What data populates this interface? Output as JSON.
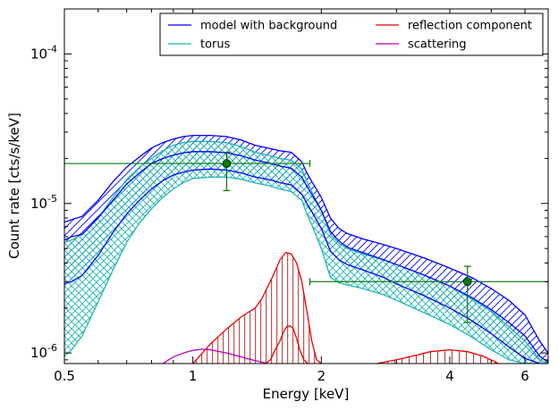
{
  "chart_data": {
    "type": "line",
    "title": "",
    "xlabel": "Energy [keV]",
    "ylabel": "Count rate [cts/s/keV]",
    "xscale": "log",
    "yscale": "log",
    "xlim": [
      0.5,
      6.8
    ],
    "ylim": [
      8.5e-07,
      0.0002
    ],
    "grid": false,
    "legend_position": "top-right",
    "legend_columns": 2,
    "x_ticks": [
      {
        "value": 0.5,
        "label": "0.5"
      },
      {
        "value": 1,
        "label": "1"
      },
      {
        "value": 2,
        "label": "2"
      },
      {
        "value": 4,
        "label": "4"
      },
      {
        "value": 6,
        "label": "6"
      }
    ],
    "y_ticks": [
      {
        "value": 1e-06,
        "base": "10",
        "exp": "-6"
      },
      {
        "value": 1e-05,
        "base": "10",
        "exp": "-5"
      },
      {
        "value": 0.0001,
        "base": "10",
        "exp": "-4"
      }
    ],
    "colors": {
      "model": "#0000ff",
      "torus": "#1fb5b5",
      "reflection": "#ee0000",
      "reflection_hatch": "#b03030",
      "scattering": "#bb00bb",
      "data": "#007a00"
    },
    "legend": [
      {
        "name": "model with background",
        "color": "#0000ff"
      },
      {
        "name": "reflection component",
        "color": "#ee0000"
      },
      {
        "name": "torus",
        "color": "#1fb5b5"
      },
      {
        "name": "scattering",
        "color": "#bb00bb"
      }
    ],
    "energy": [
      0.5,
      0.52,
      0.55,
      0.6,
      0.65,
      0.7,
      0.75,
      0.8,
      0.85,
      0.9,
      0.95,
      1.0,
      1.1,
      1.2,
      1.3,
      1.4,
      1.5,
      1.6,
      1.7,
      1.8,
      1.85,
      1.9,
      2.0,
      2.1,
      2.2,
      2.3,
      2.5,
      2.8,
      3.0,
      3.5,
      4.0,
      4.5,
      5.0,
      5.5,
      6.0,
      6.5,
      6.8
    ],
    "series": [
      {
        "name": "model with background",
        "role": "upper",
        "values": [
          7.5e-06,
          7.8e-06,
          8.2e-06,
          1.05e-05,
          1.4e-05,
          1.75e-05,
          2.05e-05,
          2.35e-05,
          2.55e-05,
          2.7e-05,
          2.8e-05,
          2.85e-05,
          2.85e-05,
          2.8e-05,
          2.65e-05,
          2.45e-05,
          2.35e-05,
          2.25e-05,
          2.2e-05,
          1.9e-05,
          1.6e-05,
          1.4e-05,
          1.1e-05,
          8e-06,
          6.8e-06,
          6.3e-06,
          5.8e-06,
          5.3e-06,
          5e-06,
          4.3e-06,
          3.7e-06,
          3.2e-06,
          2.7e-06,
          2.25e-06,
          1.8e-06,
          1.2e-06,
          1e-06
        ]
      },
      {
        "name": "model with background",
        "role": "middle",
        "values": [
          5.7e-06,
          6e-06,
          6.2e-06,
          8e-06,
          1.05e-05,
          1.35e-05,
          1.6e-05,
          1.85e-05,
          2e-05,
          2.1e-05,
          2.18e-05,
          2.22e-05,
          2.22e-05,
          2.18e-05,
          2.08e-05,
          1.95e-05,
          1.87e-05,
          1.78e-05,
          1.72e-05,
          1.5e-05,
          1.3e-05,
          1.15e-05,
          9e-06,
          6.5e-06,
          5.6e-06,
          5.1e-06,
          4.7e-06,
          4.2e-06,
          3.9e-06,
          3.3e-06,
          2.8e-06,
          2.35e-06,
          1.95e-06,
          1.6e-06,
          1.3e-06,
          9.5e-07,
          8.7e-07
        ]
      },
      {
        "name": "model with background",
        "role": "lower",
        "values": [
          2.9e-06,
          3e-06,
          3.3e-06,
          4.5e-06,
          6.4e-06,
          8.5e-06,
          1.05e-05,
          1.25e-05,
          1.42e-05,
          1.55e-05,
          1.62e-05,
          1.67e-05,
          1.7e-05,
          1.67e-05,
          1.6e-05,
          1.5e-05,
          1.45e-05,
          1.38e-05,
          1.33e-05,
          1.15e-05,
          1e-05,
          8.8e-06,
          6.8e-06,
          4.8e-06,
          4.2e-06,
          3.9e-06,
          3.6e-06,
          3.2e-06,
          2.9e-06,
          2.4e-06,
          2e-06,
          1.65e-06,
          1.35e-06,
          1.1e-06,
          9.2e-07,
          8.5e-07,
          8.5e-07
        ]
      },
      {
        "name": "torus",
        "role": "upper",
        "values": [
          5.5e-06,
          5.7e-06,
          6.2e-06,
          8e-06,
          1.1e-05,
          1.45e-05,
          1.75e-05,
          2e-05,
          2.25e-05,
          2.45e-05,
          2.55e-05,
          2.6e-05,
          2.6e-05,
          2.55e-05,
          2.4e-05,
          2.2e-05,
          2.1e-05,
          2e-05,
          1.95e-05,
          1.7e-05,
          1.4e-05,
          1.2e-05,
          9e-06,
          6.2e-06,
          5.4e-06,
          5e-06,
          4.6e-06,
          4.2e-06,
          3.9e-06,
          3.3e-06,
          2.8e-06,
          2.3e-06,
          1.9e-06,
          1.5e-06,
          1.2e-06,
          9e-07,
          8.5e-07
        ]
      },
      {
        "name": "torus",
        "role": "lower",
        "values": [
          9.5e-07,
          1.05e-06,
          1.3e-06,
          2.2e-06,
          3.6e-06,
          5.5e-06,
          7.4e-06,
          9.2e-06,
          1.1e-05,
          1.25e-05,
          1.38e-05,
          1.47e-05,
          1.5e-05,
          1.5e-05,
          1.45e-05,
          1.37e-05,
          1.32e-05,
          1.25e-05,
          1.2e-05,
          1.05e-05,
          8.5e-06,
          7.2e-06,
          5e-06,
          3.2e-06,
          2.95e-06,
          2.85e-06,
          2.7e-06,
          2.45e-06,
          2.25e-06,
          1.85e-06,
          1.55e-06,
          1.28e-06,
          1.05e-06,
          9e-07,
          8.5e-07,
          8.5e-07,
          8.5e-07
        ]
      },
      {
        "name": "reflection component",
        "role": "upper",
        "energy": [
          1.0,
          1.1,
          1.2,
          1.3,
          1.4,
          1.45,
          1.5,
          1.55,
          1.6,
          1.65,
          1.7,
          1.75,
          1.8,
          1.85,
          1.9,
          1.95,
          2.0
        ],
        "values": [
          8.5e-07,
          1.15e-06,
          1.45e-06,
          1.75e-06,
          2e-06,
          2.3e-06,
          2.8e-06,
          3.4e-06,
          4.2e-06,
          4.7e-06,
          4.6e-06,
          4e-06,
          3e-06,
          1.9e-06,
          1.2e-06,
          9e-07,
          8.5e-07
        ]
      },
      {
        "name": "reflection component",
        "role": "lower",
        "energy": [
          1.48,
          1.52,
          1.56,
          1.6,
          1.63,
          1.66,
          1.69,
          1.72,
          1.75,
          1.78,
          1.82,
          1.86
        ],
        "values": [
          8.5e-07,
          9e-07,
          1.05e-06,
          1.2e-06,
          1.38e-06,
          1.5e-06,
          1.52e-06,
          1.45e-06,
          1.25e-06,
          1.05e-06,
          9e-07,
          8.5e-07
        ]
      },
      {
        "name": "reflection component",
        "role": "upper-high",
        "energy": [
          2.7,
          3.0,
          3.3,
          3.6,
          4.0,
          4.4,
          4.8,
          5.2
        ],
        "values": [
          8.5e-07,
          9e-07,
          9.6e-07,
          1.02e-06,
          1.05e-06,
          1.02e-06,
          9.5e-07,
          8.5e-07
        ]
      },
      {
        "name": "scattering",
        "role": "line",
        "energy": [
          0.85,
          0.9,
          0.95,
          1.0,
          1.05,
          1.1,
          1.2,
          1.3,
          1.4,
          1.5
        ],
        "values": [
          8.5e-07,
          9.4e-07,
          1e-06,
          1.04e-06,
          1.06e-06,
          1.05e-06,
          1e-06,
          9.4e-07,
          8.9e-07,
          8.5e-07
        ]
      }
    ],
    "data_points": [
      {
        "x": 1.2,
        "y": 1.85e-05,
        "xerr": [
          0.5,
          1.88
        ],
        "yerr": [
          1.22e-05,
          2.2e-05
        ]
      },
      {
        "x": 4.4,
        "y": 3e-06,
        "xerr": [
          1.88,
          6.8
        ],
        "yerr": [
          1.6e-06,
          3.8e-06
        ]
      }
    ]
  }
}
